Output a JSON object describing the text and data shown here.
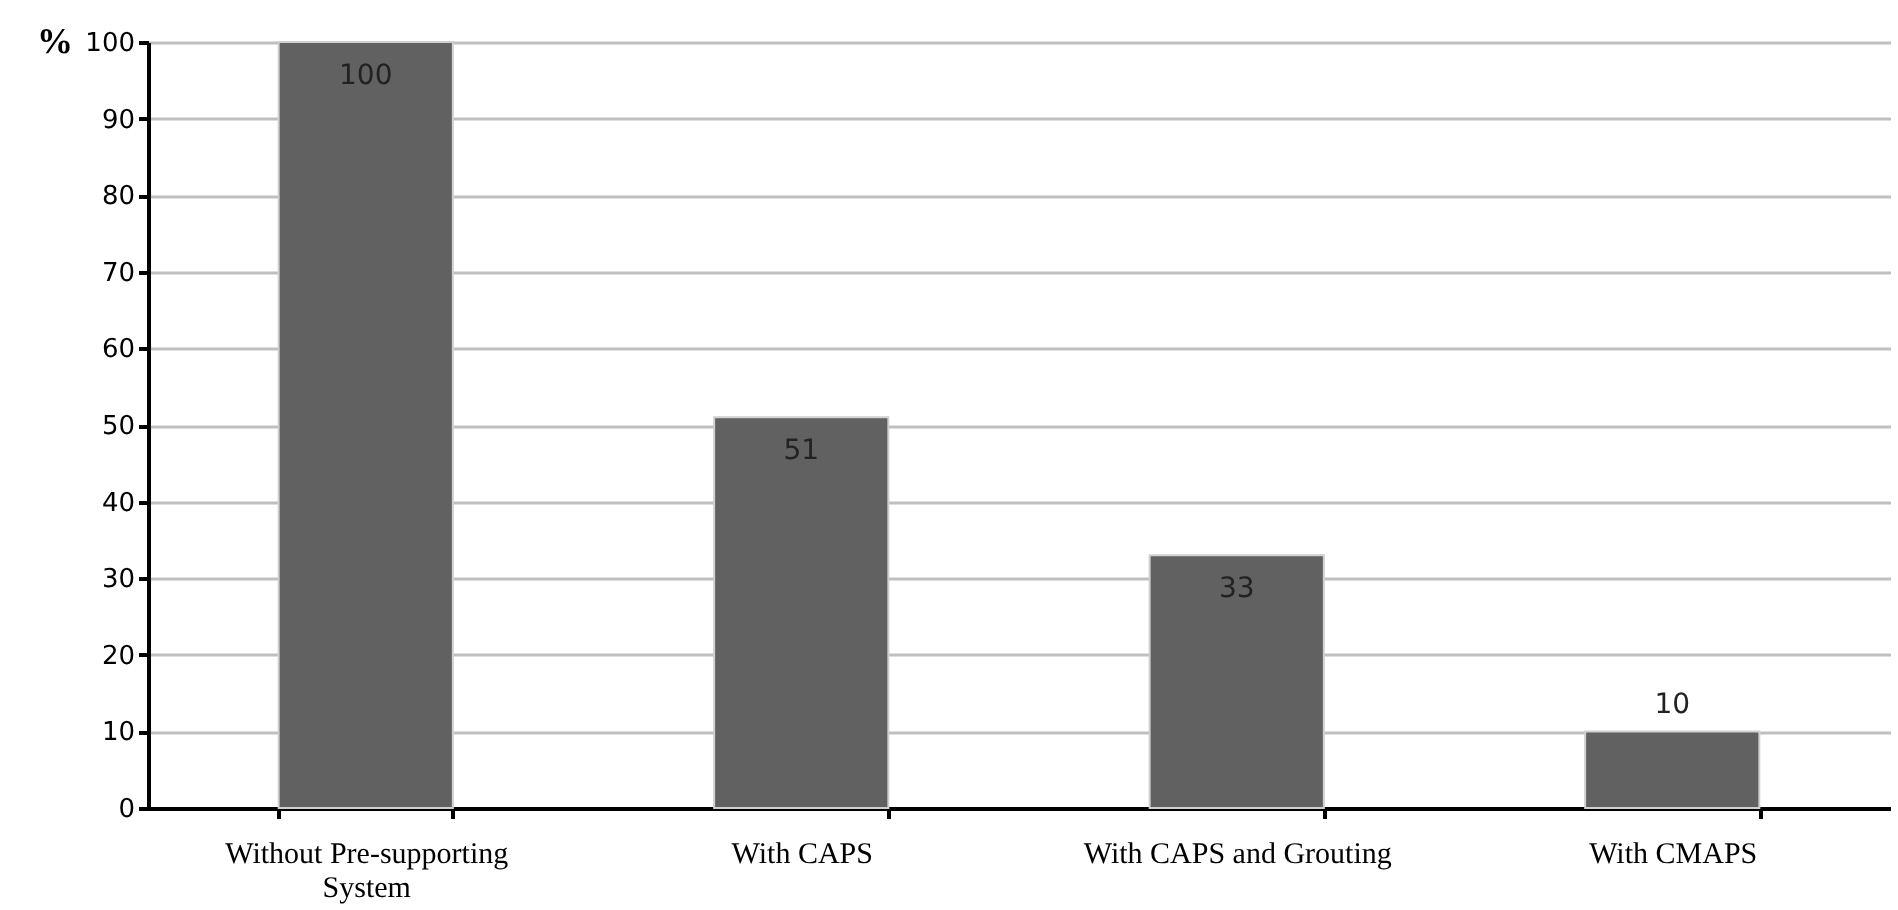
{
  "chart_data": {
    "type": "bar",
    "ylabel": "%",
    "categories": [
      "Without Pre-supporting System",
      "With CAPS",
      "With CAPS and Grouting",
      "With CMAPS"
    ],
    "values": [
      100,
      51,
      33,
      10
    ],
    "color": "#616161",
    "data_labels": true,
    "ylim": [
      0,
      100
    ],
    "yticks": [
      0,
      10,
      20,
      30,
      40,
      50,
      60,
      70,
      80,
      90,
      100
    ],
    "grid": "y"
  }
}
